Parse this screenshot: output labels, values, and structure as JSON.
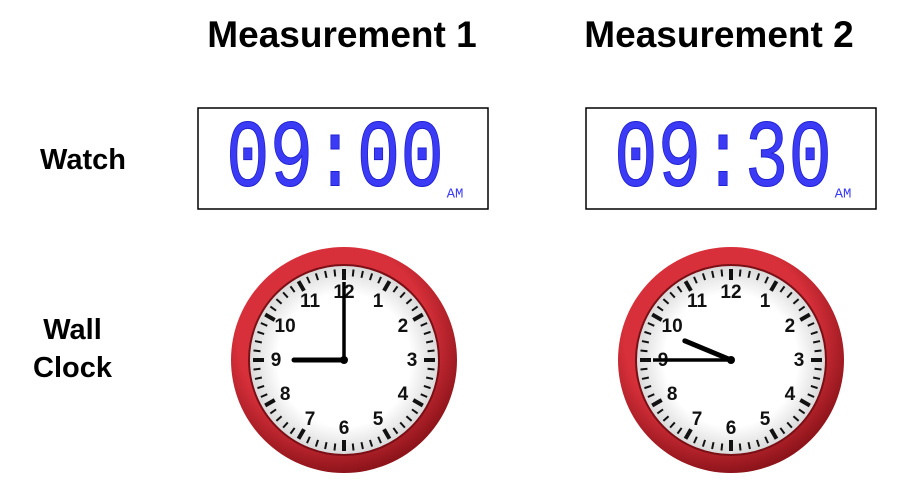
{
  "headers": [
    "Measurement 1",
    "Measurement 2"
  ],
  "row_labels": {
    "watch": "Watch",
    "wall_clock": "Wall Clock"
  },
  "watches": [
    {
      "time": "09:00",
      "period": "AM"
    },
    {
      "time": "09:30",
      "period": "AM"
    }
  ],
  "clock_numerals": [
    "1",
    "2",
    "3",
    "4",
    "5",
    "6",
    "7",
    "8",
    "9",
    "10",
    "11",
    "12"
  ],
  "clocks": [
    {
      "hour": 9,
      "minute": 0
    },
    {
      "hour": 9,
      "minute": 45
    }
  ]
}
